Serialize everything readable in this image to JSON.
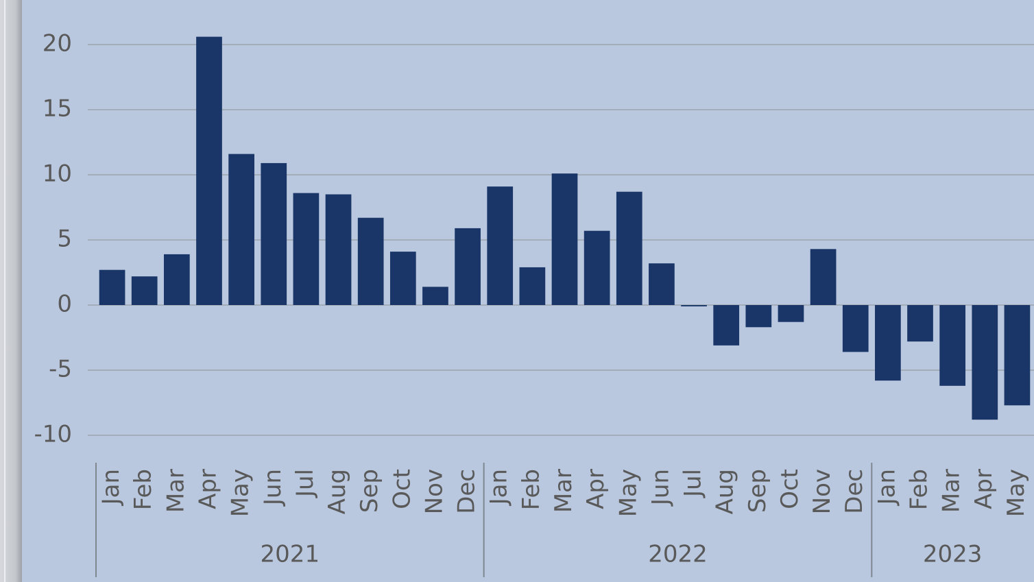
{
  "chart_data": {
    "type": "bar",
    "groups": [
      {
        "label": "2021",
        "categories": [
          "Jan",
          "Feb",
          "Mar",
          "Apr",
          "May",
          "Jun",
          "Jul",
          "Aug",
          "Sep",
          "Oct",
          "Nov",
          "Dec"
        ]
      },
      {
        "label": "2022",
        "categories": [
          "Jan",
          "Feb",
          "Mar",
          "Apr",
          "May",
          "Jun",
          "Jul",
          "Aug",
          "Sep",
          "Oct",
          "Nov",
          "Dec"
        ]
      },
      {
        "label": "2023",
        "categories": [
          "Jan",
          "Feb",
          "Mar",
          "Apr",
          "May"
        ]
      }
    ],
    "values": [
      2.7,
      2.2,
      3.9,
      20.6,
      11.6,
      10.9,
      8.6,
      8.5,
      6.7,
      4.1,
      1.4,
      5.9,
      9.1,
      2.9,
      10.1,
      5.7,
      8.7,
      3.2,
      -0.1,
      -3.1,
      -1.7,
      -1.3,
      4.3,
      -3.6,
      -5.8,
      -2.8,
      -6.2,
      -8.8,
      -7.7
    ],
    "color": "#1a3668",
    "ylim": [
      -12,
      22
    ],
    "yticks": [
      -10,
      -5,
      0,
      5,
      10,
      15,
      20
    ],
    "grid": true
  }
}
